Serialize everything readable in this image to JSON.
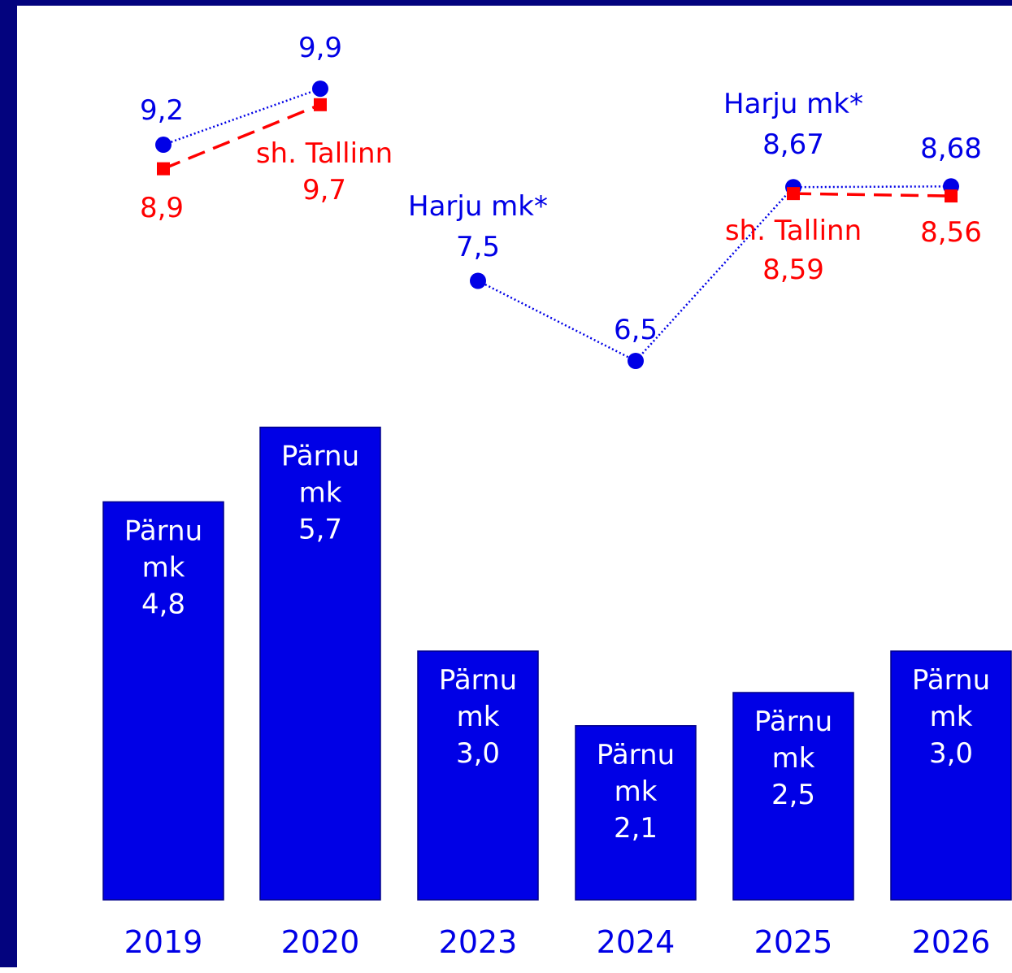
{
  "chart_data": {
    "type": "bar",
    "categories": [
      "2019",
      "2020",
      "2023",
      "2024",
      "2025",
      "2026"
    ],
    "colors": {
      "bars": "#0000e6",
      "bar_border": "#00008a",
      "harju": "#0000e6",
      "tallinn": "#ff0000",
      "frame": "#03037e",
      "axis_text": "#0000e6"
    },
    "bar_series": {
      "values": [
        4.8,
        5.7,
        3.0,
        2.1,
        2.5,
        3.0
      ],
      "labels": [
        [
          "Pärnu",
          "mk",
          "4,8"
        ],
        [
          "Pärnu",
          "mk",
          "5,7"
        ],
        [
          "Pärnu",
          "mk",
          "3,0"
        ],
        [
          "Pärnu",
          "mk",
          "2,1"
        ],
        [
          "Pärnu",
          "mk",
          "2,5"
        ],
        [
          "Pärnu",
          "mk",
          "3,0"
        ]
      ]
    },
    "line_series": [
      {
        "key": "harju",
        "style": "dotted",
        "marker": "circle",
        "segments": [
          [
            0,
            1
          ],
          [
            2,
            3,
            4,
            5
          ]
        ],
        "values": [
          9.2,
          9.9,
          7.5,
          6.5,
          8.67,
          8.68
        ],
        "labels": [
          [
            "9,2"
          ],
          [
            "9,9"
          ],
          [
            "Harju mk*",
            "7,5"
          ],
          [
            "6,5"
          ],
          [
            "Harju mk*",
            "8,67"
          ],
          [
            "8,68"
          ]
        ]
      },
      {
        "key": "tallinn",
        "style": "dashed",
        "marker": "square",
        "segments": [
          [
            0,
            1
          ],
          [
            4,
            5
          ]
        ],
        "values": [
          8.9,
          9.7,
          null,
          null,
          8.59,
          8.56
        ],
        "labels": [
          [
            "8,9"
          ],
          [
            "sh. Tallinn",
            "9,7"
          ],
          null,
          null,
          [
            "sh. Tallinn",
            "8,59"
          ],
          [
            "8,56"
          ]
        ]
      }
    ]
  }
}
